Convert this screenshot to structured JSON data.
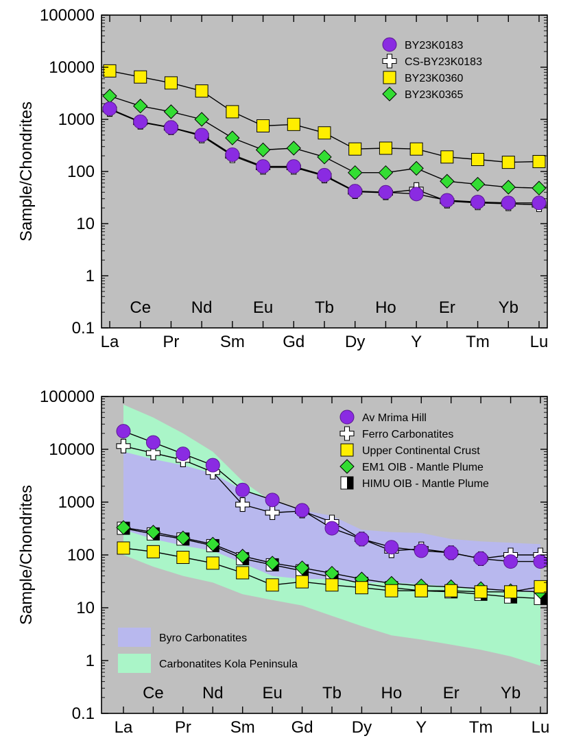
{
  "chart_data": [
    {
      "type": "line",
      "ylabel": "Sample/Chondrites",
      "yscale": "log",
      "ylim": [
        0.1,
        100000
      ],
      "yticks": [
        "0.1",
        "1",
        "10",
        "100",
        "1000",
        "10000",
        "100000"
      ],
      "categories": [
        "La",
        "Ce",
        "Pr",
        "Nd",
        "Sm",
        "Eu",
        "Gd",
        "Tb",
        "Dy",
        "Ho",
        "Y",
        "Er",
        "Tm",
        "Yb",
        "Lu"
      ],
      "bottom_labels": [
        "La",
        "Pr",
        "Sm",
        "Gd",
        "Dy",
        "Y",
        "Tm",
        "Lu"
      ],
      "inner_labels": [
        "Ce",
        "Nd",
        "Eu",
        "Tb",
        "Ho",
        "Er",
        "Yb"
      ],
      "legend_position": "top-right",
      "grid": false,
      "series": [
        {
          "name": "BY23K0183",
          "marker": "circle",
          "color": "#8a2be2",
          "values": [
            1600,
            900,
            700,
            500,
            210,
            125,
            125,
            85,
            42,
            40,
            37,
            28,
            26,
            25,
            25
          ]
        },
        {
          "name": "CS-BY23K0183",
          "marker": "cross",
          "color": "#ffffff",
          "values": [
            1550,
            880,
            690,
            480,
            200,
            120,
            120,
            82,
            41,
            39,
            45,
            27,
            25,
            24,
            23
          ]
        },
        {
          "name": "BY23K0360",
          "marker": "square",
          "color": "#ffee00",
          "values": [
            8500,
            6500,
            5000,
            3500,
            1400,
            750,
            800,
            550,
            270,
            280,
            270,
            190,
            170,
            150,
            155
          ]
        },
        {
          "name": "BY23K0365",
          "marker": "diamond",
          "color": "#33dd33",
          "values": [
            2800,
            1800,
            1400,
            1000,
            440,
            260,
            280,
            190,
            95,
            95,
            115,
            65,
            57,
            50,
            48
          ]
        }
      ]
    },
    {
      "type": "line",
      "ylabel": "Sample/Chondrites",
      "yscale": "log",
      "ylim": [
        0.1,
        100000
      ],
      "yticks": [
        "0.1",
        "1",
        "10",
        "100",
        "1000",
        "10000",
        "100000"
      ],
      "categories": [
        "La",
        "Ce",
        "Pr",
        "Nd",
        "Sm",
        "Eu",
        "Gd",
        "Tb",
        "Dy",
        "Ho",
        "Y",
        "Er",
        "Tm",
        "Yb",
        "Lu"
      ],
      "bottom_labels": [
        "La",
        "Pr",
        "Sm",
        "Gd",
        "Dy",
        "Y",
        "Tm",
        "Lu"
      ],
      "inner_labels": [
        "Ce",
        "Nd",
        "Eu",
        "Tb",
        "Ho",
        "Er",
        "Yb"
      ],
      "legend_position": "top-right",
      "grid": false,
      "bands": [
        {
          "name": "Byro Carbonatites",
          "color": "#b8b8ee",
          "upper": [
            9000,
            6500,
            5000,
            3500,
            1700,
            1100,
            700,
            550,
            300,
            270,
            260,
            200,
            180,
            170,
            160
          ],
          "lower": [
            300,
            200,
            150,
            120,
            70,
            40,
            35,
            35,
            30,
            30,
            28,
            25,
            22,
            20,
            20
          ]
        },
        {
          "name": "Carbonatites Kola Peninsula",
          "color": "#aaf5c8",
          "upper": [
            70000,
            40000,
            20000,
            9000,
            2500,
            1000,
            500,
            350,
            250,
            200,
            180,
            150,
            130,
            110,
            100
          ],
          "lower": [
            100,
            60,
            40,
            30,
            18,
            14,
            11,
            7,
            4.5,
            3,
            2.5,
            2,
            1.6,
            1.2,
            0.8
          ]
        }
      ],
      "series": [
        {
          "name": "Av Mrima Hill",
          "marker": "circle",
          "color": "#8a2be2",
          "values": [
            22000,
            13500,
            8200,
            5000,
            1700,
            1100,
            700,
            320,
            200,
            140,
            120,
            110,
            85,
            75,
            75
          ]
        },
        {
          "name": "Ferro Carbonatites",
          "marker": "cross",
          "color": "#ffffff",
          "values": [
            11500,
            8500,
            6300,
            3700,
            900,
            630,
            680,
            420,
            200,
            120,
            130,
            110,
            85,
            100,
            100
          ]
        },
        {
          "name": "Upper Continental Crust",
          "marker": "square",
          "color": "#ffee00",
          "values": [
            135,
            115,
            90,
            70,
            46,
            27,
            31,
            27,
            24,
            21,
            21,
            21,
            20,
            20,
            25
          ]
        },
        {
          "name": "EM1 OIB - Mantle Plume",
          "marker": "diamond",
          "color": "#33dd33",
          "values": [
            330,
            270,
            210,
            160,
            95,
            70,
            57,
            45,
            35,
            29,
            26,
            25,
            23,
            21,
            20
          ]
        },
        {
          "name": "HIMU OIB - Mantle Plume",
          "marker": "halfsquare",
          "color": "#000000",
          "values": [
            320,
            250,
            200,
            150,
            85,
            65,
            50,
            38,
            29,
            24,
            21,
            20,
            18,
            16,
            15
          ]
        }
      ]
    }
  ]
}
